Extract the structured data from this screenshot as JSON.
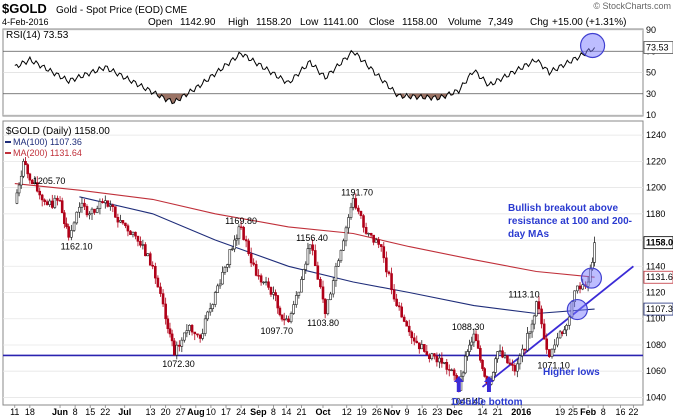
{
  "header": {
    "symbol": "$GOLD",
    "name": "Gold - Spot Price (EOD)",
    "exchange": "CME",
    "date": "4-Feb-2016",
    "open_label": "Open",
    "open": "1142.90",
    "high_label": "High",
    "high": "1158.20",
    "low_label": "Low",
    "low": "1141.00",
    "close_label": "Close",
    "close": "1158.00",
    "volume_label": "Volume",
    "volume": "7,349",
    "chg_label": "Chg",
    "chg": "+15.00 (+1.31%)",
    "credit": "© StockCharts.com"
  },
  "rsi_panel": {
    "label": "RSI(14) 73.53",
    "ticks": [
      "90",
      "70",
      "50",
      "30",
      "10"
    ],
    "current_label": "73.53"
  },
  "price_panel": {
    "label": "$GOLD (Daily) 1158.00",
    "ma100_label": "MA(100) 1107.36",
    "ma200_label": "MA(200) 1131.64",
    "ticks": [
      "1240",
      "1220",
      "1200",
      "1180",
      "1160",
      "1140",
      "1120",
      "1100",
      "1080",
      "1060",
      "1040"
    ],
    "price_tags": [
      "1158.00",
      "1131.64",
      "1107.36"
    ],
    "annotations": {
      "a1205": "1205.70",
      "a1162": "1162.10",
      "a1191": "1191.70",
      "a1169": "1169.80",
      "a1156": "1156.40",
      "a1097": "1097.70",
      "a1103": "1103.80",
      "a1072": "1072.30",
      "a1088": "1088.30",
      "a1113": "1113.10",
      "a1071": "1071.10",
      "a1045": "1045.40",
      "bullish_line1": "Bullish breakout above",
      "bullish_line2": "resistance at 100 and 200-",
      "bullish_line3": "day MAs",
      "higher_lows": "Higher lows",
      "double_bottom": "Double bottom"
    }
  },
  "x_axis": {
    "labels": [
      "11",
      "18",
      "Jun",
      "8",
      "15",
      "22",
      "Jul",
      "13",
      "20",
      "27",
      "Aug",
      "10",
      "17",
      "24",
      "Sep",
      "8",
      "14",
      "21",
      "Oct",
      "12",
      "19",
      "26",
      "Nov",
      "9",
      "16",
      "23",
      "Dec",
      "14",
      "21",
      "2016",
      "19",
      "25",
      "Feb",
      "8",
      "16",
      "22"
    ]
  },
  "colors": {
    "ma100": "#1f2d7a",
    "ma200": "#c0303a",
    "price": "#b00018",
    "trend": "#3b2bd6",
    "annotation_text": "#2a3ad0",
    "rsi_fill": "#8a5a4a"
  },
  "chart_data": {
    "type": "line",
    "title": "$GOLD Gold - Spot Price (EOD) CME",
    "price_series": [
      {
        "date": "2015-05-11",
        "close": 1188
      },
      {
        "date": "2015-05-15",
        "close": 1220
      },
      {
        "date": "2015-05-18",
        "close": 1205.7
      },
      {
        "date": "2015-05-26",
        "close": 1187
      },
      {
        "date": "2015-06-01",
        "close": 1190
      },
      {
        "date": "2015-06-05",
        "close": 1162.1
      },
      {
        "date": "2015-06-10",
        "close": 1185
      },
      {
        "date": "2015-06-17",
        "close": 1181
      },
      {
        "date": "2015-06-22",
        "close": 1190
      },
      {
        "date": "2015-06-29",
        "close": 1175
      },
      {
        "date": "2015-07-06",
        "close": 1163
      },
      {
        "date": "2015-07-14",
        "close": 1140
      },
      {
        "date": "2015-07-20",
        "close": 1100
      },
      {
        "date": "2015-07-24",
        "close": 1072.3
      },
      {
        "date": "2015-07-31",
        "close": 1095
      },
      {
        "date": "2015-08-05",
        "close": 1085
      },
      {
        "date": "2015-08-12",
        "close": 1120
      },
      {
        "date": "2015-08-21",
        "close": 1160
      },
      {
        "date": "2015-08-24",
        "close": 1169.8
      },
      {
        "date": "2015-08-31",
        "close": 1133
      },
      {
        "date": "2015-09-08",
        "close": 1120
      },
      {
        "date": "2015-09-11",
        "close": 1103
      },
      {
        "date": "2015-09-15",
        "close": 1097.7
      },
      {
        "date": "2015-09-21",
        "close": 1130
      },
      {
        "date": "2015-09-25",
        "close": 1156.4
      },
      {
        "date": "2015-10-01",
        "close": 1115
      },
      {
        "date": "2015-10-02",
        "close": 1103.8
      },
      {
        "date": "2015-10-07",
        "close": 1140
      },
      {
        "date": "2015-10-14",
        "close": 1185
      },
      {
        "date": "2015-10-15",
        "close": 1191.7
      },
      {
        "date": "2015-10-21",
        "close": 1165
      },
      {
        "date": "2015-10-28",
        "close": 1155
      },
      {
        "date": "2015-11-03",
        "close": 1115
      },
      {
        "date": "2015-11-10",
        "close": 1090
      },
      {
        "date": "2015-11-17",
        "close": 1075
      },
      {
        "date": "2015-11-24",
        "close": 1070
      },
      {
        "date": "2015-12-02",
        "close": 1053
      },
      {
        "date": "2015-12-03",
        "close": 1045.4
      },
      {
        "date": "2015-12-07",
        "close": 1075
      },
      {
        "date": "2015-12-10",
        "close": 1088.3
      },
      {
        "date": "2015-12-14",
        "close": 1062
      },
      {
        "date": "2015-12-17",
        "close": 1050
      },
      {
        "date": "2015-12-21",
        "close": 1075
      },
      {
        "date": "2015-12-29",
        "close": 1060
      },
      {
        "date": "2016-01-05",
        "close": 1090
      },
      {
        "date": "2016-01-08",
        "close": 1113.1
      },
      {
        "date": "2016-01-14",
        "close": 1071.1
      },
      {
        "date": "2016-01-19",
        "close": 1090
      },
      {
        "date": "2016-01-22",
        "close": 1095
      },
      {
        "date": "2016-01-27",
        "close": 1125
      },
      {
        "date": "2016-02-01",
        "close": 1128
      },
      {
        "date": "2016-02-03",
        "close": 1143
      },
      {
        "date": "2016-02-04",
        "close": 1158
      }
    ],
    "ma100": [
      {
        "date": "2015-06-10",
        "value": 1193
      },
      {
        "date": "2015-07-14",
        "value": 1180
      },
      {
        "date": "2015-08-12",
        "value": 1160
      },
      {
        "date": "2015-09-15",
        "value": 1140
      },
      {
        "date": "2015-10-15",
        "value": 1128
      },
      {
        "date": "2015-11-10",
        "value": 1120
      },
      {
        "date": "2015-12-10",
        "value": 1110
      },
      {
        "date": "2016-01-08",
        "value": 1104
      },
      {
        "date": "2016-02-04",
        "value": 1107.36
      }
    ],
    "ma200": [
      {
        "date": "2015-05-11",
        "value": 1203
      },
      {
        "date": "2015-06-10",
        "value": 1198
      },
      {
        "date": "2015-07-14",
        "value": 1191
      },
      {
        "date": "2015-08-12",
        "value": 1180
      },
      {
        "date": "2015-09-15",
        "value": 1170
      },
      {
        "date": "2015-10-15",
        "value": 1165
      },
      {
        "date": "2015-11-10",
        "value": 1155
      },
      {
        "date": "2015-12-10",
        "value": 1145
      },
      {
        "date": "2016-01-08",
        "value": 1136
      },
      {
        "date": "2016-02-04",
        "value": 1131.64
      }
    ],
    "support_level": 1072,
    "trendline": [
      {
        "date": "2015-12-14",
        "value": 1048
      },
      {
        "date": "2016-02-22",
        "value": 1140
      }
    ],
    "rsi": {
      "current": 73.53,
      "series": [
        {
          "date": "2015-05-11",
          "value": 55
        },
        {
          "date": "2015-05-18",
          "value": 62
        },
        {
          "date": "2015-06-05",
          "value": 42
        },
        {
          "date": "2015-06-22",
          "value": 55
        },
        {
          "date": "2015-07-20",
          "value": 25
        },
        {
          "date": "2015-07-24",
          "value": 22
        },
        {
          "date": "2015-08-05",
          "value": 38
        },
        {
          "date": "2015-08-24",
          "value": 68
        },
        {
          "date": "2015-09-15",
          "value": 40
        },
        {
          "date": "2015-09-25",
          "value": 60
        },
        {
          "date": "2015-10-02",
          "value": 45
        },
        {
          "date": "2015-10-15",
          "value": 70
        },
        {
          "date": "2015-11-05",
          "value": 28
        },
        {
          "date": "2015-11-24",
          "value": 26
        },
        {
          "date": "2015-12-03",
          "value": 33
        },
        {
          "date": "2015-12-10",
          "value": 52
        },
        {
          "date": "2015-12-17",
          "value": 38
        },
        {
          "date": "2016-01-08",
          "value": 62
        },
        {
          "date": "2016-01-14",
          "value": 50
        },
        {
          "date": "2016-01-27",
          "value": 64
        },
        {
          "date": "2016-02-04",
          "value": 73.53
        }
      ],
      "ylim": [
        10,
        90
      ],
      "ticks": [
        90,
        70,
        50,
        30,
        10
      ]
    },
    "ylim": [
      1035,
      1250
    ],
    "ticks": [
      1040,
      1060,
      1080,
      1100,
      1120,
      1140,
      1160,
      1180,
      1200,
      1220,
      1240
    ],
    "xlim": [
      "2015-05-06",
      "2016-02-26"
    ]
  }
}
